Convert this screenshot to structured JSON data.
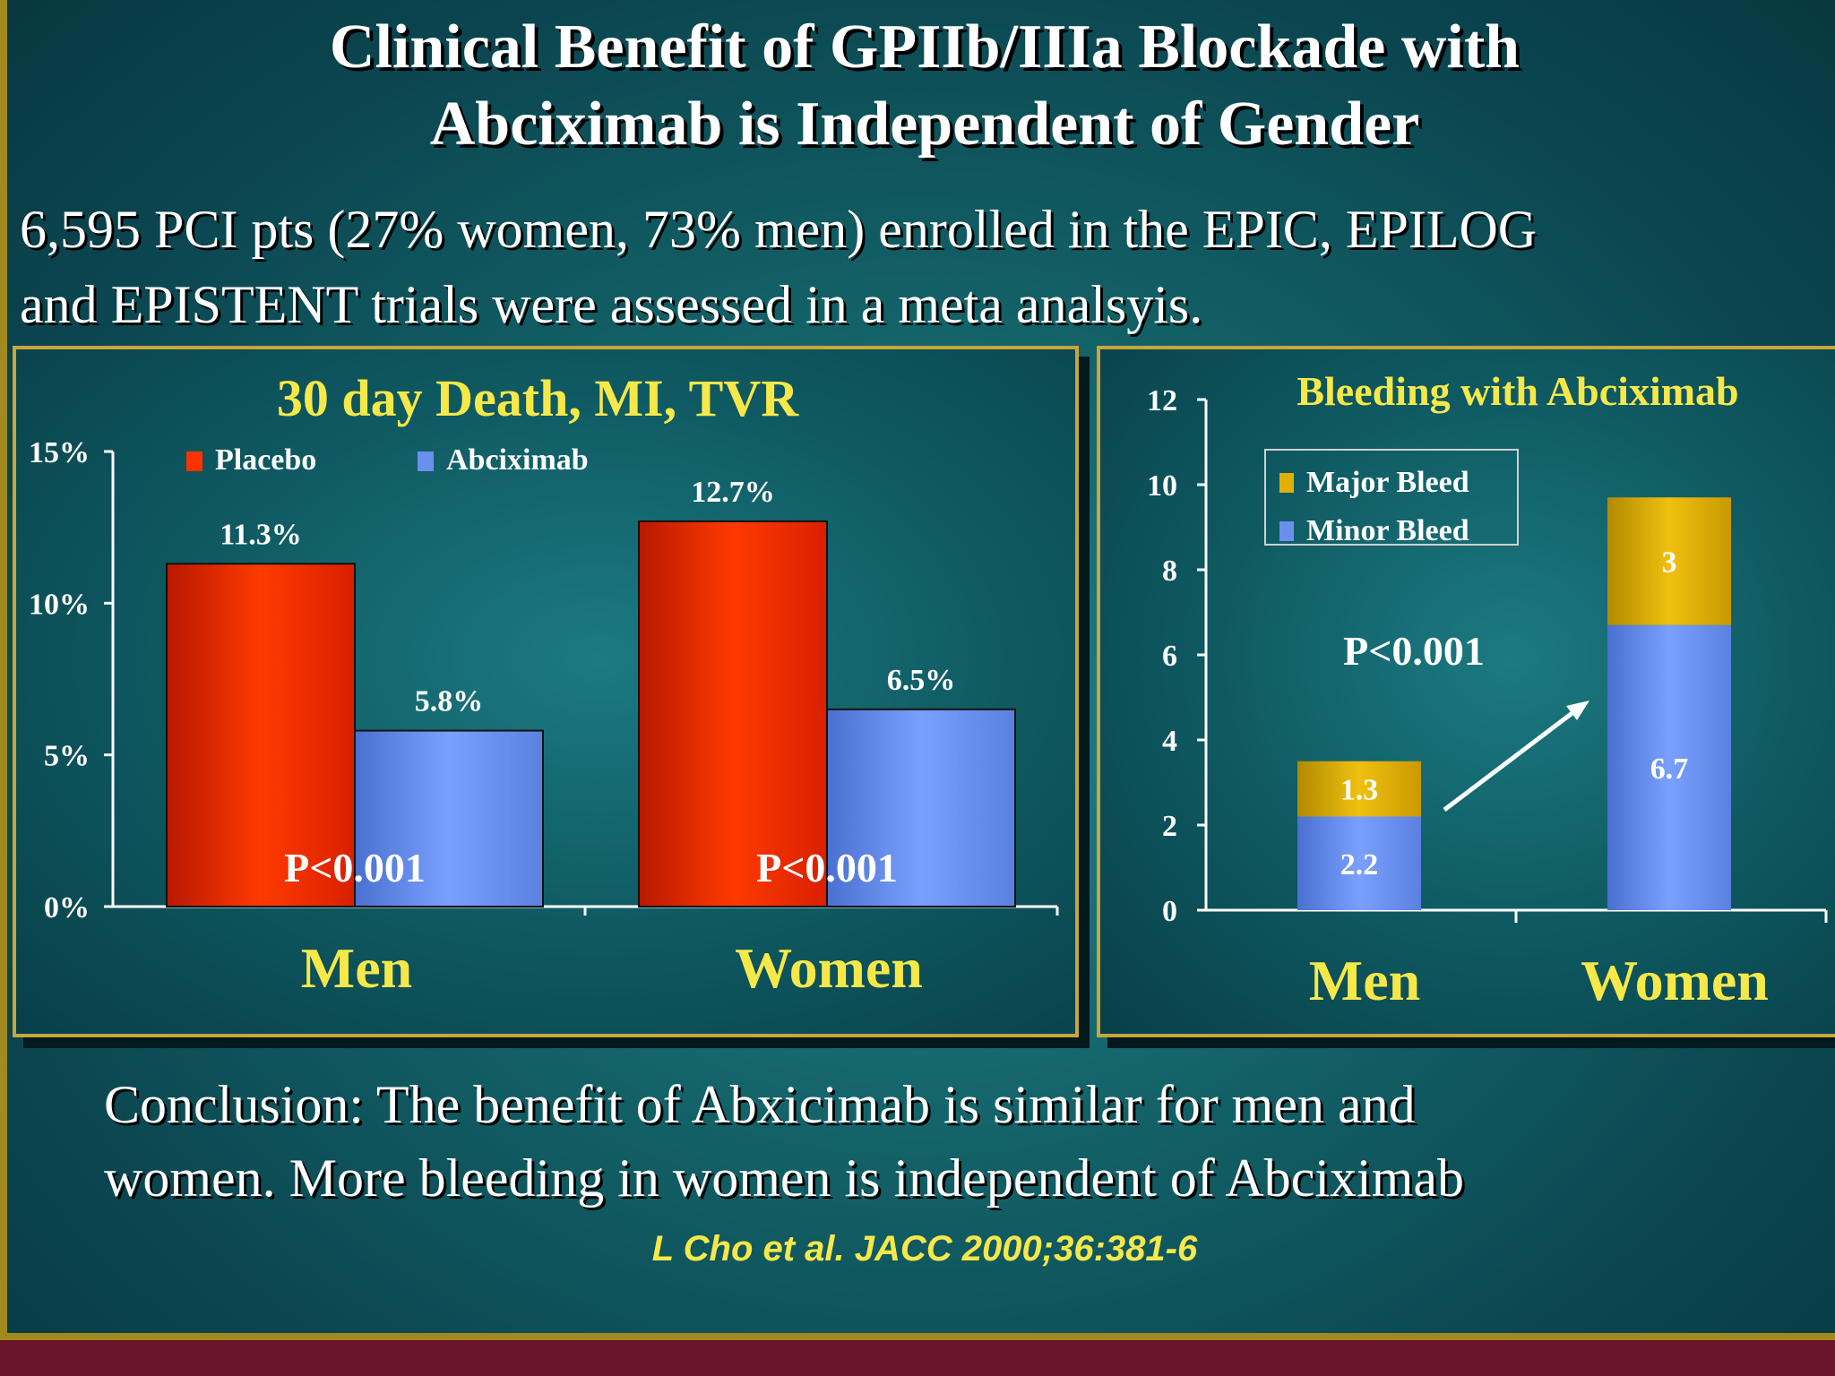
{
  "slide": {
    "title_line1": "Clinical Benefit of GPIIb/IIIa Blockade with",
    "title_line2": "Abciximab is Independent of Gender",
    "subtitle_line1": "6,595 PCI pts (27% women, 73% men) enrolled in the EPIC, EPILOG",
    "subtitle_line2": "and EPISTENT trials were assessed in a meta analsyis.",
    "conclusion_line1": "Conclusion: The benefit of Abxicimab is similar for men and",
    "conclusion_line2": "women. More bleeding in women is independent of Abciximab",
    "citation": "L Cho et al. JACC 2000;36:381-6"
  },
  "chart_data": [
    {
      "type": "bar",
      "title": "30 day Death, MI, TVR",
      "categories": [
        "Men",
        "Women"
      ],
      "series": [
        {
          "name": "Placebo",
          "values": [
            11.3,
            12.7
          ],
          "color": "#ff3300",
          "labels": [
            "11.3%",
            "12.7%"
          ]
        },
        {
          "name": "Abciximab",
          "values": [
            5.8,
            6.5
          ],
          "color": "#6a90ee",
          "labels": [
            "5.8%",
            "6.5%"
          ]
        }
      ],
      "ylim": [
        0,
        15
      ],
      "yticks": [
        0,
        5,
        10,
        15
      ],
      "ytick_labels": [
        "0%",
        "5%",
        "10%",
        "15%"
      ],
      "annotations": [
        "P<0.001",
        "P<0.001"
      ],
      "legend_position": "top"
    },
    {
      "type": "bar",
      "stacked": true,
      "title": "Bleeding with Abciximab",
      "categories": [
        "Men",
        "Women"
      ],
      "series": [
        {
          "name": "Minor Bleed",
          "values": [
            2.2,
            6.7
          ],
          "color": "#6a90ee",
          "labels": [
            "2.2",
            "6.7"
          ]
        },
        {
          "name": "Major Bleed",
          "values": [
            1.3,
            3
          ],
          "color": "#e0b000",
          "labels": [
            "1.3",
            "3"
          ]
        }
      ],
      "ylim": [
        0,
        12
      ],
      "yticks": [
        0,
        2,
        4,
        6,
        8,
        10,
        12
      ],
      "ytick_labels": [
        "0",
        "2",
        "4",
        "6",
        "8",
        "10",
        "12"
      ],
      "annotations": [
        "P<0.001"
      ],
      "legend_position": "top-left",
      "legend_order": [
        "Major Bleed",
        "Minor Bleed"
      ]
    }
  ]
}
